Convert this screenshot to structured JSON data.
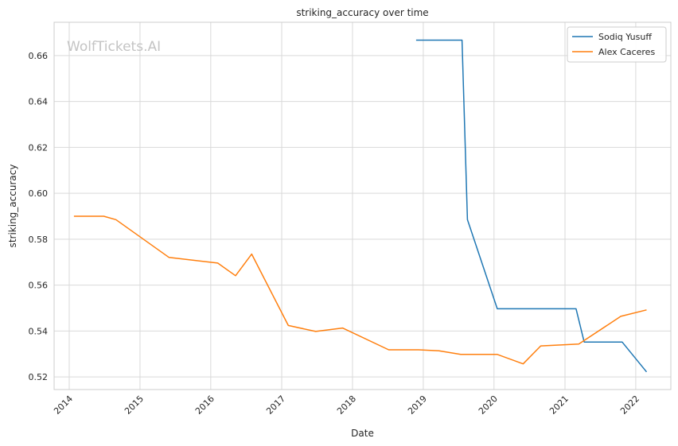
{
  "chart_data": {
    "type": "line",
    "title": "striking_accuracy over time",
    "xlabel": "Date",
    "ylabel": "striking_accuracy",
    "watermark": "WolfTickets.AI",
    "x_ticks": [
      "2014",
      "2015",
      "2016",
      "2017",
      "2018",
      "2019",
      "2020",
      "2021",
      "2022"
    ],
    "y_ticks": [
      "0.52",
      "0.54",
      "0.56",
      "0.58",
      "0.60",
      "0.62",
      "0.64",
      "0.66"
    ],
    "xlim": [
      "2013-10-15",
      "2022-07-01"
    ],
    "ylim": [
      0.5145,
      0.6745
    ],
    "grid": true,
    "legend_position": "top-right",
    "series": [
      {
        "name": "Sodiq Yusuff",
        "color": "#1f77b4",
        "points": [
          {
            "x": "2018-11-25",
            "y": 0.6667
          },
          {
            "x": "2019-07-20",
            "y": 0.6667
          },
          {
            "x": "2019-08-17",
            "y": 0.5885
          },
          {
            "x": "2020-01-18",
            "y": 0.5497
          },
          {
            "x": "2021-02-27",
            "y": 0.5497
          },
          {
            "x": "2021-04-10",
            "y": 0.5352
          },
          {
            "x": "2021-10-23",
            "y": 0.5352
          },
          {
            "x": "2022-02-26",
            "y": 0.5222
          }
        ]
      },
      {
        "name": "Alex Caceres",
        "color": "#ff7f0e",
        "points": [
          {
            "x": "2014-01-25",
            "y": 0.59
          },
          {
            "x": "2014-06-28",
            "y": 0.59
          },
          {
            "x": "2014-08-30",
            "y": 0.5885
          },
          {
            "x": "2015-05-30",
            "y": 0.5721
          },
          {
            "x": "2016-02-06",
            "y": 0.5696
          },
          {
            "x": "2016-05-08",
            "y": 0.5641
          },
          {
            "x": "2016-07-30",
            "y": 0.5735
          },
          {
            "x": "2017-02-04",
            "y": 0.5424
          },
          {
            "x": "2017-06-25",
            "y": 0.5398
          },
          {
            "x": "2017-11-11",
            "y": 0.5413
          },
          {
            "x": "2018-07-07",
            "y": 0.5318
          },
          {
            "x": "2018-12-08",
            "y": 0.5318
          },
          {
            "x": "2019-03-23",
            "y": 0.5314
          },
          {
            "x": "2019-07-13",
            "y": 0.5298
          },
          {
            "x": "2020-01-18",
            "y": 0.5298
          },
          {
            "x": "2020-05-30",
            "y": 0.5257
          },
          {
            "x": "2020-08-29",
            "y": 0.5335
          },
          {
            "x": "2021-03-13",
            "y": 0.5343
          },
          {
            "x": "2021-10-16",
            "y": 0.5464
          },
          {
            "x": "2022-02-26",
            "y": 0.5492
          }
        ]
      }
    ]
  }
}
